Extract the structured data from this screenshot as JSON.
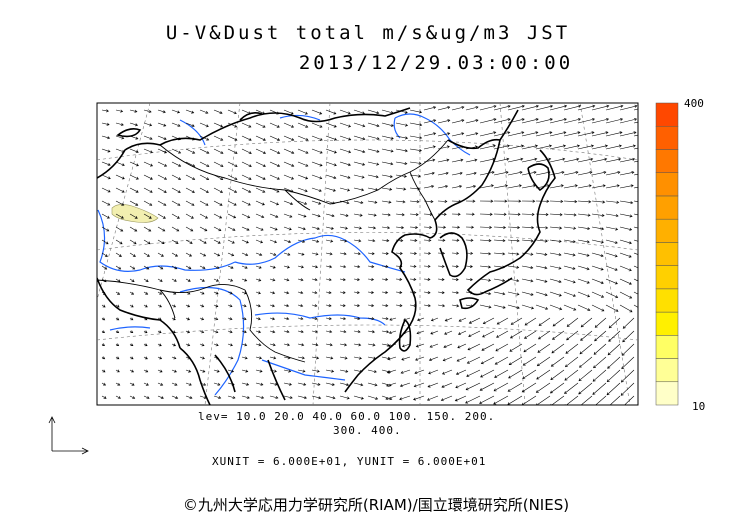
{
  "title": {
    "line1": "U-V&Dust total m/s&ug/m3 JST",
    "line2": "2013/12/29.03:00:00"
  },
  "legend": {
    "lev_line1": "lev= 10.0 20.0 40.0 60.0 100. 150. 200.",
    "lev_line2": "300. 400.",
    "units": "XUNIT = 6.000E+01, YUNIT = 6.000E+01"
  },
  "colorbar": {
    "max_label": "400",
    "min_label": "10",
    "colors": [
      "#ffffc8",
      "#ffff96",
      "#ffff64",
      "#fff000",
      "#ffe000",
      "#ffd000",
      "#ffc000",
      "#ffb000",
      "#ffa000",
      "#ff9000",
      "#ff7800",
      "#ff6000",
      "#ff4800"
    ]
  },
  "colors": {
    "coast": "#000000",
    "river": "#1e64ff",
    "dust_low": "#f2efb0"
  },
  "copyright": "©九州大学応用力学研究所(RIAM)/国立環境研究所(NIES)"
}
